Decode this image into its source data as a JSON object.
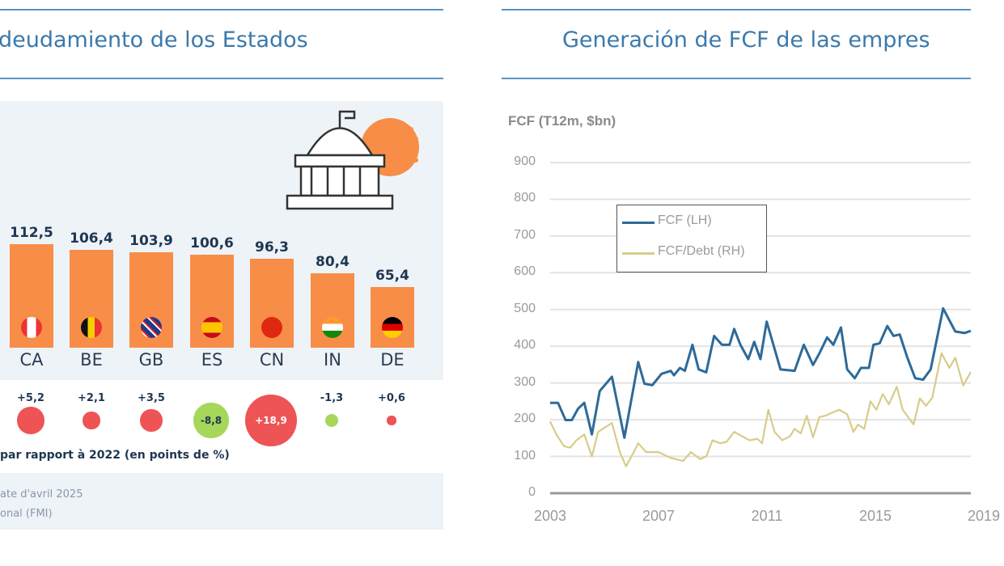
{
  "left_panel": {
    "title": "deudamiento de los Estados",
    "bubble_caption": "par rapport à 2022 (en points de %)",
    "footnote_1": "ate d'avril 2025",
    "footnote_2": "onal (FMI)",
    "icon": "government-building-icon"
  },
  "right_panel": {
    "title": "Generación de FCF de las empres"
  },
  "colors": {
    "bar": "#f78d47",
    "increase": "#ee5455",
    "decrease": "#a6d65a",
    "fcf": "#2d6a99",
    "fcf_debt": "#d8cc8a",
    "title": "#3b79ab"
  },
  "chart_data": [
    {
      "type": "bar",
      "categories": [
        "CA",
        "BE",
        "GB",
        "ES",
        "CN",
        "IN",
        "DE"
      ],
      "values": [
        112.5,
        106.4,
        103.9,
        100.6,
        96.3,
        80.4,
        65.4
      ],
      "value_labels": [
        "112,5",
        "106,4",
        "103,9",
        "100,6",
        "96,3",
        "80,4",
        "65,4"
      ],
      "flags": [
        "canada",
        "belgium",
        "united-kingdom",
        "spain",
        "china",
        "india",
        "germany"
      ],
      "change_vs_2022": [
        5.2,
        2.1,
        3.5,
        -8.8,
        18.9,
        -1.3,
        0.6
      ],
      "change_labels": [
        "+5,2",
        "+2,1",
        "+3,5",
        "-8,8",
        "+18,9",
        "-1,3",
        "+0,6"
      ],
      "change_caption": "par rapport à 2022 (en points de %)"
    },
    {
      "type": "line",
      "ylabel": "FCF (T12m, $bn)",
      "ylim": [
        0,
        900
      ],
      "yticks": [
        "0",
        "100",
        "200",
        "300",
        "400",
        "500",
        "600",
        "700",
        "800",
        "900"
      ],
      "xticks": [
        "2003",
        "2007",
        "2011",
        "2015",
        "2019"
      ],
      "grid": true,
      "legend_placement": "top-left",
      "series": [
        {
          "name": "FCF (LH)",
          "x": [
            2003.0,
            2003.29,
            2003.57,
            2003.8,
            2004.03,
            2004.26,
            2004.54,
            2004.83,
            2005.28,
            2005.74,
            2006.25,
            2006.48,
            2006.77,
            2007.11,
            2007.45,
            2007.57,
            2007.79,
            2007.97,
            2008.25,
            2008.48,
            2008.76,
            2009.05,
            2009.34,
            2009.62,
            2009.79,
            2010.02,
            2010.31,
            2010.53,
            2010.76,
            2010.99,
            2011.5,
            2012.02,
            2012.36,
            2012.7,
            2012.93,
            2013.22,
            2013.45,
            2013.73,
            2013.96,
            2014.24,
            2014.47,
            2014.76,
            2014.93,
            2015.16,
            2015.44,
            2015.67,
            2015.9,
            2016.18,
            2016.47,
            2016.76,
            2017.04,
            2017.5,
            2017.95,
            2018.3,
            2018.52
          ],
          "y": [
            246,
            246,
            199,
            199,
            230,
            246,
            160,
            278,
            317,
            151,
            357,
            298,
            294,
            325,
            333,
            321,
            341,
            333,
            404,
            337,
            329,
            428,
            404,
            404,
            447,
            404,
            365,
            412,
            365,
            467,
            337,
            333,
            404,
            349,
            380,
            424,
            404,
            451,
            337,
            313,
            341,
            341,
            404,
            408,
            455,
            428,
            432,
            369,
            313,
            309,
            337,
            503,
            440,
            436,
            442
          ]
        },
        {
          "name": "FCF/Debt (RH)",
          "x": [
            2003.0,
            2003.23,
            2003.51,
            2003.74,
            2003.97,
            2004.26,
            2004.54,
            2004.77,
            2005.28,
            2005.57,
            2005.8,
            2006.03,
            2006.25,
            2006.54,
            2007.0,
            2007.45,
            2007.91,
            2008.19,
            2008.54,
            2008.76,
            2008.99,
            2009.28,
            2009.51,
            2009.79,
            2010.08,
            2010.36,
            2010.65,
            2010.82,
            2011.05,
            2011.28,
            2011.56,
            2011.85,
            2012.02,
            2012.25,
            2012.47,
            2012.7,
            2012.93,
            2013.16,
            2013.39,
            2013.67,
            2013.96,
            2014.19,
            2014.36,
            2014.59,
            2014.82,
            2015.04,
            2015.27,
            2015.5,
            2015.79,
            2016.01,
            2016.41,
            2016.64,
            2016.87,
            2017.1,
            2017.44,
            2017.73,
            2017.95,
            2018.24,
            2018.52
          ],
          "y": [
            195,
            160,
            128,
            124,
            144,
            160,
            100,
            167,
            191,
            112,
            73,
            104,
            136,
            112,
            112,
            96,
            88,
            112,
            93,
            100,
            144,
            136,
            140,
            167,
            155,
            144,
            148,
            136,
            227,
            167,
            144,
            155,
            175,
            163,
            211,
            152,
            207,
            211,
            219,
            227,
            215,
            167,
            187,
            175,
            250,
            227,
            270,
            242,
            290,
            227,
            187,
            258,
            238,
            260,
            381,
            341,
            369,
            293,
            330
          ]
        }
      ]
    }
  ]
}
